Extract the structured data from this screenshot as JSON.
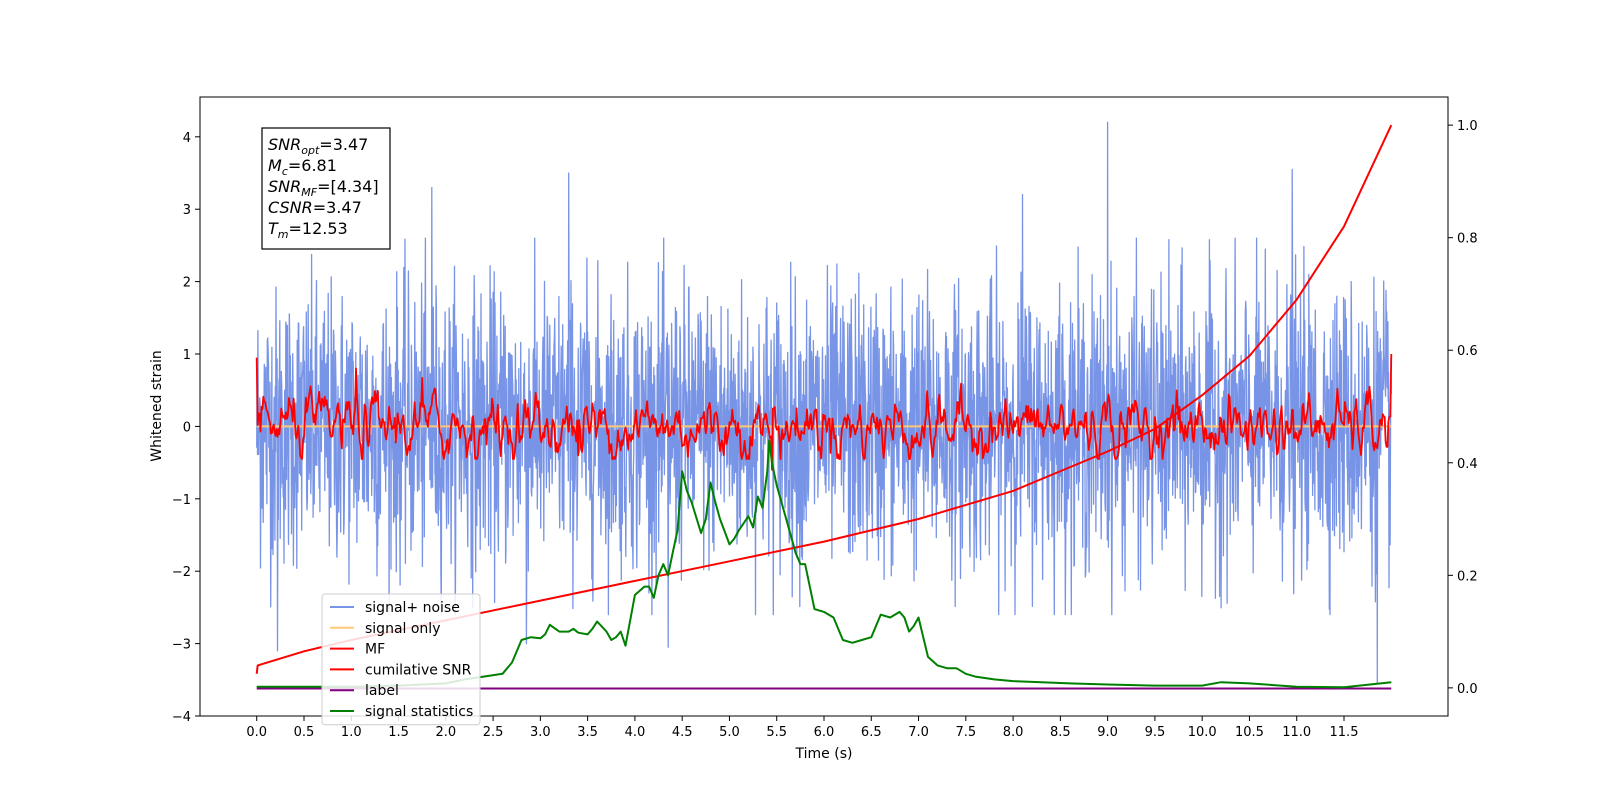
{
  "chart_data": {
    "type": "line",
    "xlabel": "Time (s)",
    "ylabel": "Whitened strain",
    "xlim": [
      -0.6,
      12.6
    ],
    "ylim": [
      -4.0,
      4.55
    ],
    "y2lim": [
      -0.05,
      1.05
    ],
    "x_ticks": [
      0.0,
      0.5,
      1.0,
      1.5,
      2.0,
      2.5,
      3.0,
      3.5,
      4.0,
      4.5,
      5.0,
      5.5,
      6.0,
      6.5,
      7.0,
      7.5,
      8.0,
      8.5,
      9.0,
      9.5,
      10.0,
      10.5,
      11.0,
      11.5
    ],
    "x_tick_labels": [
      "0.0",
      "0.5",
      "1.0",
      "1.5",
      "2.0",
      "2.5",
      "3.0",
      "3.5",
      "4.0",
      "4.5",
      "5.0",
      "5.5",
      "6.0",
      "6.5",
      "7.0",
      "7.5",
      "8.0",
      "8.5",
      "9.0",
      "9.5",
      "10.0",
      "10.5",
      "11.0",
      "11.5"
    ],
    "y_ticks": [
      -4,
      -3,
      -2,
      -1,
      0,
      1,
      2,
      3,
      4
    ],
    "y_tick_labels": [
      "−4",
      "−3",
      "−2",
      "−1",
      "0",
      "1",
      "2",
      "3",
      "4"
    ],
    "y2_ticks": [
      0.0,
      0.2,
      0.4,
      0.6,
      0.8,
      1.0
    ],
    "y2_tick_labels": [
      "0.0",
      "0.2",
      "0.4",
      "0.6",
      "0.8",
      "1.0"
    ],
    "grid": false,
    "legend_position": "lower-left",
    "info_box": {
      "lines": [
        {
          "sym": "SNR",
          "sub": "opt",
          "val": "=3.47"
        },
        {
          "sym": "M",
          "sub": "c",
          "val": "=6.81"
        },
        {
          "sym": "SNR",
          "sub": "MF",
          "val": "=[4.34]"
        },
        {
          "sym": "CSNR",
          "sub": "",
          "val": "=3.47"
        },
        {
          "sym": "T",
          "sub": "m",
          "val": "=12.53"
        }
      ]
    },
    "series": [
      {
        "name": "signal+ noise",
        "color": "#7894e6",
        "axis": "left",
        "style": "noise",
        "x_range": [
          0.0,
          12.0
        ],
        "envelope_low": -2.6,
        "envelope_high": 2.6,
        "spikes": [
          [
            9.0,
            4.2
          ],
          [
            11.85,
            -3.55
          ],
          [
            4.35,
            -3.05
          ],
          [
            3.3,
            3.5
          ],
          [
            0.22,
            -3.1
          ],
          [
            1.85,
            3.3
          ],
          [
            10.95,
            3.55
          ],
          [
            8.1,
            3.2
          ],
          [
            2.85,
            -3.0
          ]
        ]
      },
      {
        "name": "signal only",
        "color": "#ffc877",
        "axis": "left",
        "x": [
          0.0,
          12.0
        ],
        "values": [
          0.0,
          0.0
        ]
      },
      {
        "name": "MF",
        "color": "#ff0000",
        "axis": "left",
        "style": "mf",
        "x_range": [
          0.0,
          12.0
        ],
        "peaks": [
          [
            0.0,
            0.95
          ],
          [
            1.05,
            0.8
          ],
          [
            1.75,
            0.67
          ],
          [
            5.45,
            0.67
          ],
          [
            12.0,
            1.0
          ],
          [
            3.4,
            -0.4
          ],
          [
            5.45,
            -0.6
          ]
        ]
      },
      {
        "name": "cumilative SNR",
        "color": "#ff0000",
        "axis": "right",
        "x": [
          0.0,
          0.01,
          0.5,
          1.0,
          2.0,
          3.0,
          4.0,
          5.0,
          6.0,
          7.0,
          8.0,
          9.0,
          9.5,
          10.0,
          10.5,
          11.0,
          11.5,
          12.0
        ],
        "values": [
          0.025,
          0.04,
          0.065,
          0.085,
          0.12,
          0.155,
          0.19,
          0.225,
          0.26,
          0.3,
          0.35,
          0.42,
          0.46,
          0.52,
          0.59,
          0.69,
          0.82,
          1.0
        ]
      },
      {
        "name": "label",
        "color": "#800080",
        "axis": "left",
        "x": [
          0.0,
          12.0
        ],
        "values": [
          -3.62,
          -3.62
        ]
      },
      {
        "name": "signal statistics",
        "color": "#008000",
        "axis": "right",
        "x": [
          0.0,
          0.5,
          1.0,
          1.5,
          2.0,
          2.2,
          2.4,
          2.6,
          2.7,
          2.8,
          2.9,
          3.0,
          3.05,
          3.1,
          3.2,
          3.3,
          3.35,
          3.4,
          3.5,
          3.55,
          3.6,
          3.7,
          3.75,
          3.8,
          3.85,
          3.9,
          4.0,
          4.1,
          4.15,
          4.2,
          4.25,
          4.3,
          4.35,
          4.4,
          4.45,
          4.5,
          4.55,
          4.6,
          4.7,
          4.75,
          4.8,
          4.85,
          4.9,
          5.0,
          5.05,
          5.1,
          5.2,
          5.25,
          5.3,
          5.35,
          5.4,
          5.42,
          5.45,
          5.5,
          5.6,
          5.7,
          5.75,
          5.8,
          5.9,
          6.0,
          6.1,
          6.2,
          6.3,
          6.4,
          6.5,
          6.6,
          6.7,
          6.8,
          6.85,
          6.9,
          6.95,
          7.0,
          7.1,
          7.2,
          7.3,
          7.4,
          7.5,
          7.6,
          7.8,
          8.0,
          8.3,
          8.6,
          9.0,
          9.5,
          10.0,
          10.2,
          10.5,
          11.0,
          11.5,
          12.0
        ],
        "values": [
          0.002,
          0.002,
          0.002,
          0.004,
          0.008,
          0.015,
          0.02,
          0.025,
          0.045,
          0.085,
          0.09,
          0.088,
          0.095,
          0.112,
          0.1,
          0.1,
          0.105,
          0.098,
          0.095,
          0.105,
          0.118,
          0.1,
          0.085,
          0.09,
          0.1,
          0.075,
          0.165,
          0.18,
          0.18,
          0.16,
          0.2,
          0.22,
          0.2,
          0.24,
          0.28,
          0.385,
          0.35,
          0.33,
          0.275,
          0.3,
          0.365,
          0.33,
          0.3,
          0.255,
          0.265,
          0.28,
          0.305,
          0.285,
          0.34,
          0.32,
          0.385,
          0.44,
          0.4,
          0.36,
          0.3,
          0.24,
          0.22,
          0.22,
          0.14,
          0.135,
          0.125,
          0.085,
          0.08,
          0.085,
          0.09,
          0.13,
          0.125,
          0.135,
          0.125,
          0.1,
          0.11,
          0.125,
          0.055,
          0.04,
          0.035,
          0.035,
          0.025,
          0.02,
          0.015,
          0.012,
          0.01,
          0.008,
          0.006,
          0.004,
          0.004,
          0.01,
          0.008,
          0.002,
          0.001,
          0.01
        ]
      }
    ]
  }
}
